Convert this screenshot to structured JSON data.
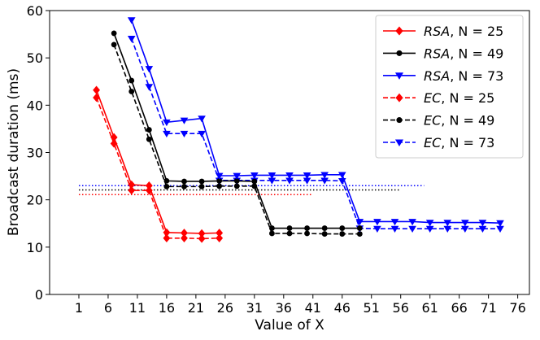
{
  "chart_data": {
    "type": "line",
    "title": "",
    "xlabel": "Value of X",
    "ylabel": "Broadcast duration (ms)",
    "xlim": [
      -4,
      78
    ],
    "ylim": [
      0,
      60
    ],
    "xticks": [
      1,
      6,
      11,
      16,
      21,
      26,
      31,
      36,
      41,
      46,
      51,
      56,
      61,
      66,
      71,
      76
    ],
    "yticks": [
      0,
      10,
      20,
      30,
      40,
      50,
      60
    ],
    "legend_position": "top-right",
    "series": [
      {
        "name": "RSA, N = 25",
        "label_prefix": "RSA",
        "label_suffix": ", N = 25",
        "color": "#ff0000",
        "linestyle": "solid",
        "marker": "diamond",
        "x": [
          4,
          7,
          10,
          13,
          16,
          19,
          22,
          25
        ],
        "y": [
          43.2,
          33.2,
          23.2,
          23.0,
          13.1,
          13.0,
          12.9,
          13.0
        ]
      },
      {
        "name": "RSA, N = 49",
        "label_prefix": "RSA",
        "label_suffix": ", N = 49",
        "color": "#000000",
        "linestyle": "solid",
        "marker": "circle",
        "x": [
          7,
          10,
          13,
          16,
          19,
          22,
          25,
          28,
          31,
          34,
          37,
          40,
          43,
          46,
          49
        ],
        "y": [
          55.2,
          45.2,
          34.8,
          24.0,
          23.9,
          23.9,
          24.0,
          24.0,
          23.9,
          14.0,
          14.0,
          14.0,
          14.0,
          14.0,
          14.0
        ]
      },
      {
        "name": "RSA, N = 73",
        "label_prefix": "RSA",
        "label_suffix": ", N = 73",
        "color": "#0000ff",
        "linestyle": "solid",
        "marker": "triangle-down",
        "x": [
          10,
          13,
          16,
          19,
          22,
          25,
          28,
          31,
          34,
          37,
          40,
          43,
          46,
          49,
          52,
          55,
          58,
          61,
          64,
          67,
          70,
          73
        ],
        "y": [
          58.0,
          47.7,
          36.4,
          36.8,
          37.2,
          25.1,
          25.1,
          25.2,
          25.2,
          25.2,
          25.2,
          25.3,
          25.3,
          15.4,
          15.4,
          15.4,
          15.4,
          15.2,
          15.2,
          15.2,
          15.2,
          15.1
        ]
      },
      {
        "name": "EC, N = 25",
        "label_prefix": "EC",
        "label_suffix": ", N = 25",
        "color": "#ff0000",
        "linestyle": "dashed",
        "marker": "diamond",
        "x": [
          4,
          7,
          10,
          13,
          16,
          19,
          22,
          25
        ],
        "y": [
          41.6,
          31.9,
          22.0,
          22.0,
          11.9,
          11.9,
          11.8,
          11.9
        ]
      },
      {
        "name": "EC, N = 49",
        "label_prefix": "EC",
        "label_suffix": ", N = 49",
        "color": "#000000",
        "linestyle": "dashed",
        "marker": "circle",
        "x": [
          7,
          10,
          13,
          16,
          19,
          22,
          25,
          28,
          31,
          34,
          37,
          40,
          43,
          46,
          49
        ],
        "y": [
          52.8,
          42.9,
          32.8,
          22.8,
          22.8,
          22.8,
          22.9,
          22.9,
          22.9,
          12.9,
          12.9,
          12.9,
          12.8,
          12.8,
          12.8
        ]
      },
      {
        "name": "EC, N = 73",
        "label_prefix": "EC",
        "label_suffix": ", N = 73",
        "color": "#0000ff",
        "linestyle": "dashed",
        "marker": "triangle-down",
        "x": [
          10,
          13,
          16,
          19,
          22,
          25,
          28,
          31,
          34,
          37,
          40,
          43,
          46,
          49,
          52,
          55,
          58,
          61,
          64,
          67,
          70,
          73
        ],
        "y": [
          54.1,
          43.9,
          34.0,
          34.0,
          34.0,
          24.1,
          24.1,
          24.1,
          24.1,
          24.1,
          24.1,
          24.1,
          24.0,
          14.0,
          13.9,
          13.9,
          13.9,
          13.9,
          13.9,
          13.9,
          13.9,
          13.9
        ]
      }
    ],
    "reference_lines": [
      {
        "color": "#ff0000",
        "y": 21.1,
        "x_start": 1,
        "x_end": 41
      },
      {
        "color": "#000000",
        "y": 22.1,
        "x_start": 1,
        "x_end": 56
      },
      {
        "color": "#0000ff",
        "y": 23.0,
        "x_start": 1,
        "x_end": 60
      }
    ]
  }
}
